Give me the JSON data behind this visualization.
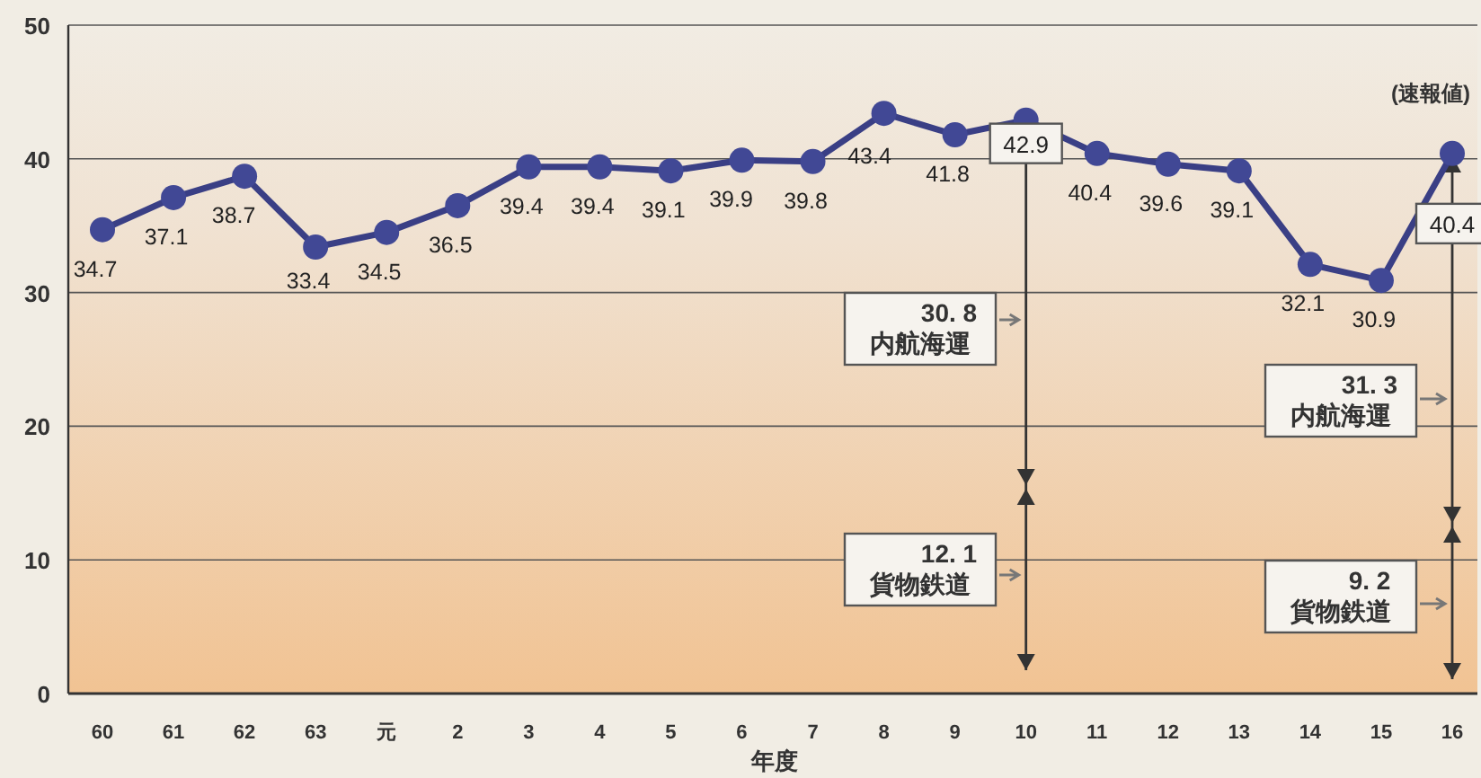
{
  "chart_data": {
    "type": "line",
    "xlabel": "年度",
    "categories": [
      "60",
      "61",
      "62",
      "63",
      "元",
      "2",
      "3",
      "4",
      "5",
      "6",
      "7",
      "8",
      "9",
      "10",
      "11",
      "12",
      "13",
      "14",
      "15",
      "16"
    ],
    "series": [
      {
        "color": "#3a3f85",
        "values": [
          34.7,
          37.1,
          38.7,
          33.4,
          34.5,
          36.5,
          39.4,
          39.4,
          39.1,
          39.9,
          39.8,
          43.4,
          41.8,
          42.9,
          40.4,
          39.6,
          39.1,
          32.1,
          30.9,
          40.4
        ]
      }
    ],
    "ylim": [
      0,
      50
    ],
    "yticks": [
      0,
      10,
      20,
      30,
      40,
      50
    ],
    "grid": "y",
    "marker": "circle",
    "line_style": "solid",
    "data_labels": true,
    "annotations": [
      "30. 8\n内航海運",
      "12. 1\n貨物鉄道",
      "31. 3\n内航海運",
      "9. 2\n貨物鉄道",
      "(速報値)"
    ]
  }
}
